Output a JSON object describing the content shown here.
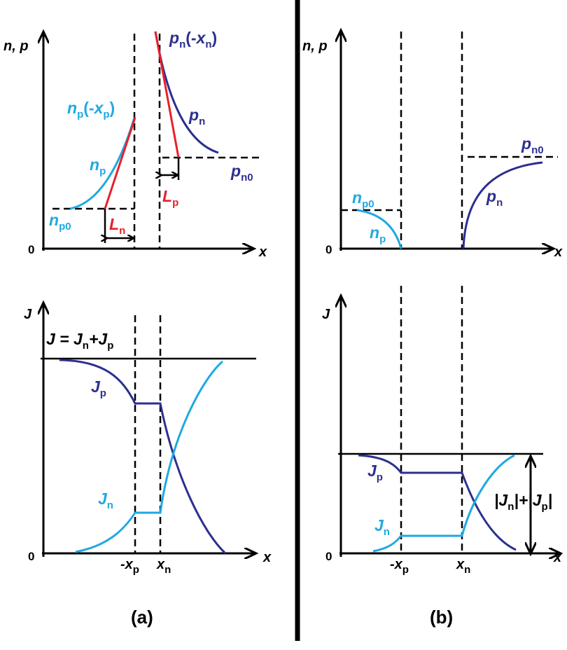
{
  "panel_a": {
    "top": {
      "y_axis_label": "n, p",
      "x_axis_label": "x",
      "origin": "0",
      "np_minus_xp": [
        "n",
        "p",
        "(-",
        "x",
        "p",
        ")"
      ],
      "np": [
        "n",
        "p"
      ],
      "np0": [
        "n",
        "p0"
      ],
      "pn_minus_xn": [
        "p",
        "n",
        "(-",
        "x",
        "n",
        ")"
      ],
      "pn": [
        "p",
        "n"
      ],
      "pn0": [
        "p",
        "n0"
      ],
      "Ln": [
        "L",
        "n"
      ],
      "Lp": [
        "L",
        "p"
      ]
    },
    "bottom": {
      "y_axis_label": "J",
      "x_axis_label": "x",
      "origin": "0",
      "total": [
        "J = J",
        "n",
        "+J",
        "p"
      ],
      "Jp": [
        "J",
        "p"
      ],
      "Jn": [
        "J",
        "n"
      ],
      "minus_xp": [
        "-x",
        "p"
      ],
      "xn": [
        "x",
        "n"
      ]
    },
    "caption": "(a)"
  },
  "panel_b": {
    "top": {
      "y_axis_label": "n, p",
      "x_axis_label": "x",
      "origin": "0",
      "np0": [
        "n",
        "p0"
      ],
      "np": [
        "n",
        "p"
      ],
      "pn0": [
        "p",
        "n0"
      ],
      "pn": [
        "p",
        "n"
      ]
    },
    "bottom": {
      "y_axis_label": "J",
      "x_axis_label": "x",
      "origin": "0",
      "Jp": [
        "J",
        "p"
      ],
      "Jn": [
        "J",
        "n"
      ],
      "minus_xp": [
        "-x",
        "p"
      ],
      "xn": [
        "x",
        "n"
      ],
      "total": [
        "|J",
        "n",
        "|+|J",
        "p",
        "|"
      ]
    },
    "caption": "(b)"
  }
}
